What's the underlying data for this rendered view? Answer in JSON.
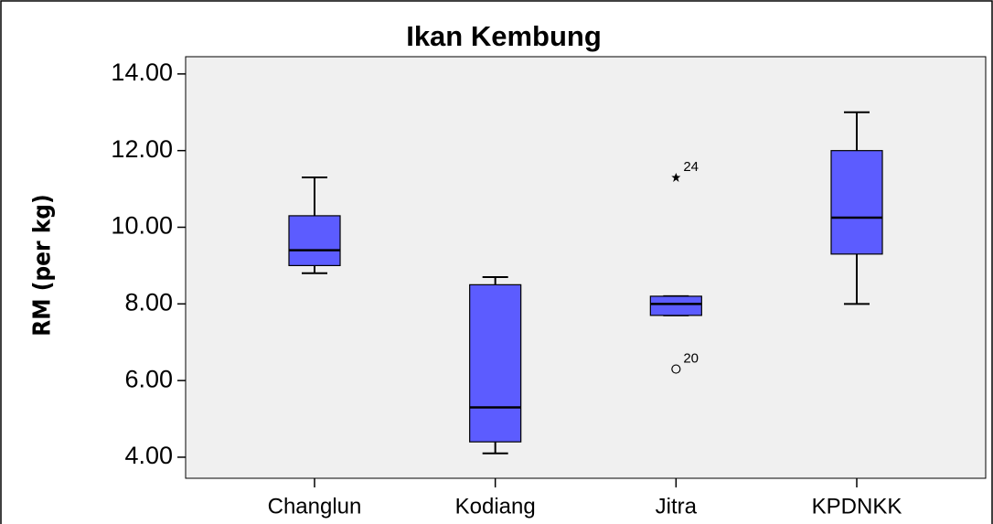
{
  "chart_data": {
    "type": "box",
    "title": "Ikan Kembung",
    "ylabel": "RM (per kg)",
    "categories": [
      "Changlun",
      "Kodiang",
      "Jitra",
      "KPDNKK"
    ],
    "color": "#5c5cff",
    "background": "#f0f0f0",
    "boxes": [
      {
        "min": 8.8,
        "q1": 9.0,
        "median": 9.4,
        "q3": 10.3,
        "max": 11.3,
        "outliers": []
      },
      {
        "min": 4.1,
        "q1": 4.4,
        "median": 5.3,
        "q3": 8.5,
        "max": 8.7,
        "outliers": []
      },
      {
        "min": 7.7,
        "q1": 7.7,
        "median": 8.0,
        "q3": 8.2,
        "max": 8.2,
        "outliers": [
          {
            "value": 11.3,
            "label": "24",
            "marker": "star"
          },
          {
            "value": 6.3,
            "label": "20",
            "marker": "circle"
          }
        ]
      },
      {
        "min": 8.0,
        "q1": 9.3,
        "median": 10.25,
        "q3": 12.0,
        "max": 13.0,
        "outliers": []
      }
    ],
    "ylim": [
      3.45,
      14.45
    ],
    "yticks": [
      {
        "value": 4,
        "label": "4.00"
      },
      {
        "value": 6,
        "label": "6.00"
      },
      {
        "value": 8,
        "label": "8.00"
      },
      {
        "value": 10,
        "label": "10.00"
      },
      {
        "value": 12,
        "label": "12.00"
      },
      {
        "value": 14,
        "label": "14.00"
      }
    ]
  }
}
